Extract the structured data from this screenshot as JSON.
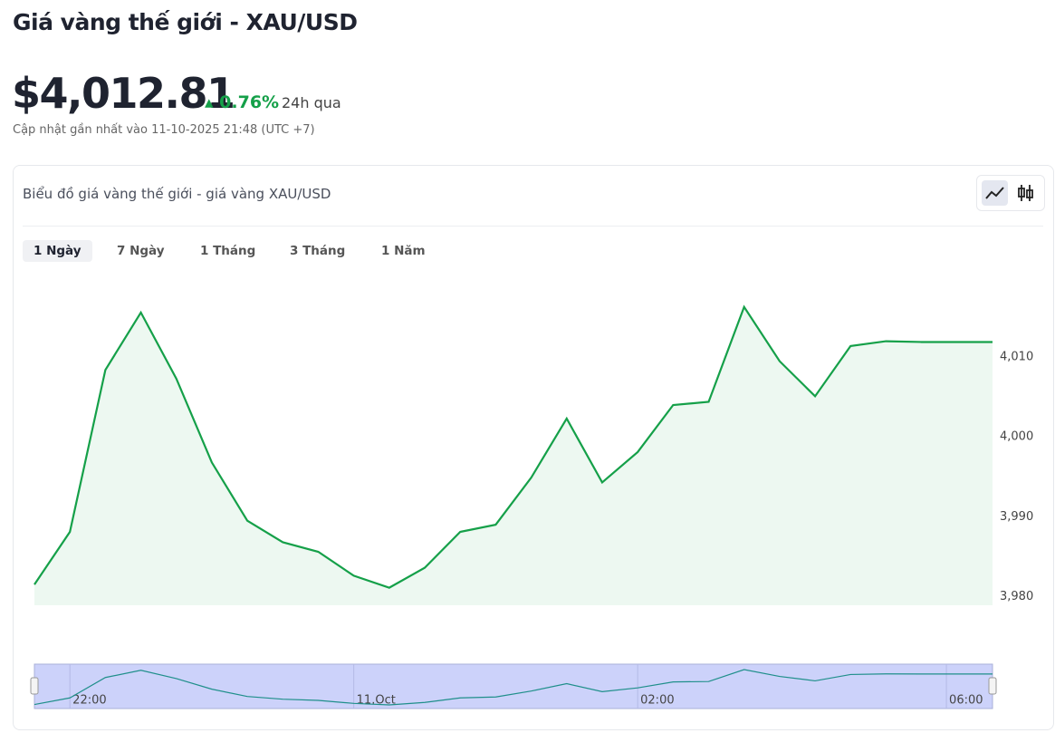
{
  "header": {
    "title": "Giá vàng thế giới - XAU/USD",
    "price": "$4,012.81",
    "change": "0.76%",
    "period": "24h qua",
    "updated": "Cập nhật gần nhất vào 11-10-2025 21:48 (UTC +7)"
  },
  "card": {
    "title": "Biểu đồ giá vàng thế giới - giá vàng XAU/USD",
    "tabs": [
      "1 Ngày",
      "7 Ngày",
      "1 Tháng",
      "3 Tháng",
      "1 Năm"
    ]
  },
  "chart_data": {
    "type": "line",
    "color": "#15a049",
    "values": [
      3981.5,
      3988.1,
      4008.4,
      4015.6,
      4007.3,
      3996.8,
      3989.5,
      3986.8,
      3985.6,
      3982.6,
      3981.1,
      3983.6,
      3988.1,
      3989.0,
      3994.9,
      4002.3,
      3994.3,
      3998.1,
      4004.0,
      4004.4,
      4016.3,
      4009.5,
      4005.1,
      4011.4,
      4012.0,
      4011.9,
      4011.9,
      4011.9
    ],
    "ylim": [
      3978.9,
      4020.7
    ],
    "yticks": [
      {
        "value": 3980,
        "label": "3,980"
      },
      {
        "value": 3990,
        "label": "3,990"
      },
      {
        "value": 4000,
        "label": "4,000"
      },
      {
        "value": 4010,
        "label": "4,010"
      }
    ],
    "xlim": [
      0,
      27
    ],
    "xticks": [
      {
        "value": 1,
        "label": "22:00"
      },
      {
        "value": 9,
        "label": "11.Oct"
      },
      {
        "value": 17,
        "label": "02:00"
      },
      {
        "value": 25.7,
        "label": "06:00"
      }
    ]
  }
}
